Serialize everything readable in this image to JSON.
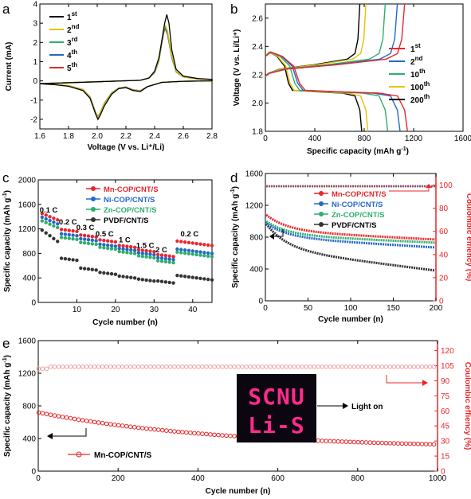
{
  "panels": {
    "a": {
      "letter": "a",
      "chart_data": {
        "type": "line",
        "xlabel": "Voltage (V vs. Li+/Li)",
        "ylabel": "Current (mA)",
        "xlim": [
          1.6,
          2.8
        ],
        "ylim": [
          -2.5,
          4
        ],
        "xticks": [
          "1.6",
          "1.8",
          "2.0",
          "2.2",
          "2.4",
          "2.6",
          "2.8"
        ],
        "yticks": [
          "-2",
          "-1",
          "0",
          "1",
          "2",
          "3",
          "4"
        ],
        "legend_position": "upper-left",
        "series": [
          {
            "name": "1st",
            "sup": "st",
            "base": "1",
            "color": "#000000",
            "anodic": [
              [
                2.3,
                0.03
              ],
              [
                2.36,
                0.15
              ],
              [
                2.4,
                0.5
              ],
              [
                2.43,
                1.2
              ],
              [
                2.455,
                2.3
              ],
              [
                2.47,
                3.0
              ],
              [
                2.485,
                3.45
              ],
              [
                2.5,
                3.0
              ],
              [
                2.52,
                1.6
              ],
              [
                2.55,
                0.6
              ],
              [
                2.6,
                0.25
              ],
              [
                2.7,
                0.12
              ],
              [
                2.8,
                0.08
              ]
            ],
            "cathodic": [
              [
                2.8,
                0.0
              ],
              [
                2.6,
                -0.02
              ],
              [
                2.45,
                -0.08
              ],
              [
                2.35,
                -0.3
              ],
              [
                2.3,
                -0.55
              ],
              [
                2.25,
                -0.5
              ],
              [
                2.2,
                -0.35
              ],
              [
                2.15,
                -0.4
              ],
              [
                2.1,
                -0.7
              ],
              [
                2.05,
                -1.3
              ],
              [
                2.02,
                -1.8
              ],
              [
                2.005,
                -2.0
              ],
              [
                1.99,
                -1.75
              ],
              [
                1.95,
                -0.9
              ],
              [
                1.9,
                -0.5
              ],
              [
                1.8,
                -0.28
              ],
              [
                1.7,
                -0.2
              ],
              [
                1.6,
                -0.15
              ]
            ]
          },
          {
            "name": "2nd",
            "sup": "nd",
            "base": "2",
            "color": "#e6c200",
            "anodic": [
              [
                2.3,
                0.03
              ],
              [
                2.36,
                0.15
              ],
              [
                2.4,
                0.45
              ],
              [
                2.43,
                1.1
              ],
              [
                2.45,
                2.1
              ],
              [
                2.465,
                2.75
              ],
              [
                2.475,
                2.9
              ],
              [
                2.49,
                2.6
              ],
              [
                2.52,
                1.3
              ],
              [
                2.55,
                0.5
              ],
              [
                2.6,
                0.2
              ],
              [
                2.7,
                0.1
              ],
              [
                2.8,
                0.06
              ]
            ],
            "cathodic": [
              [
                2.8,
                0.0
              ],
              [
                2.6,
                -0.02
              ],
              [
                2.45,
                -0.08
              ],
              [
                2.35,
                -0.3
              ],
              [
                2.3,
                -0.52
              ],
              [
                2.25,
                -0.48
              ],
              [
                2.2,
                -0.33
              ],
              [
                2.15,
                -0.38
              ],
              [
                2.1,
                -0.65
              ],
              [
                2.05,
                -1.2
              ],
              [
                2.02,
                -1.7
              ],
              [
                2.005,
                -1.92
              ],
              [
                1.99,
                -1.7
              ],
              [
                1.95,
                -0.85
              ],
              [
                1.9,
                -0.45
              ],
              [
                1.8,
                -0.25
              ],
              [
                1.7,
                -0.18
              ],
              [
                1.6,
                -0.14
              ]
            ]
          },
          {
            "name": "3rd",
            "sup": "rd",
            "base": "3",
            "color": "#2eae6b",
            "anodic": [
              [
                2.3,
                0.03
              ],
              [
                2.36,
                0.14
              ],
              [
                2.4,
                0.42
              ],
              [
                2.43,
                1.05
              ],
              [
                2.45,
                2.0
              ],
              [
                2.465,
                2.65
              ],
              [
                2.475,
                2.8
              ],
              [
                2.49,
                2.5
              ],
              [
                2.52,
                1.25
              ],
              [
                2.55,
                0.48
              ],
              [
                2.6,
                0.2
              ],
              [
                2.7,
                0.1
              ],
              [
                2.8,
                0.06
              ]
            ],
            "cathodic": [
              [
                2.8,
                0.0
              ],
              [
                2.6,
                -0.02
              ],
              [
                2.45,
                -0.08
              ],
              [
                2.35,
                -0.3
              ],
              [
                2.3,
                -0.52
              ],
              [
                2.25,
                -0.47
              ],
              [
                2.2,
                -0.32
              ],
              [
                2.15,
                -0.37
              ],
              [
                2.1,
                -0.63
              ],
              [
                2.05,
                -1.18
              ],
              [
                2.02,
                -1.68
              ],
              [
                2.005,
                -1.9
              ],
              [
                1.99,
                -1.68
              ],
              [
                1.95,
                -0.84
              ],
              [
                1.9,
                -0.45
              ],
              [
                1.8,
                -0.25
              ],
              [
                1.7,
                -0.18
              ],
              [
                1.6,
                -0.14
              ]
            ]
          },
          {
            "name": "4th",
            "sup": "th",
            "base": "4",
            "color": "#2468c9",
            "anodic": [
              [
                2.3,
                0.03
              ],
              [
                2.36,
                0.14
              ],
              [
                2.4,
                0.42
              ],
              [
                2.43,
                1.05
              ],
              [
                2.45,
                2.0
              ],
              [
                2.465,
                2.6
              ],
              [
                2.475,
                2.75
              ],
              [
                2.49,
                2.45
              ],
              [
                2.52,
                1.2
              ],
              [
                2.55,
                0.47
              ],
              [
                2.6,
                0.2
              ],
              [
                2.7,
                0.1
              ],
              [
                2.8,
                0.06
              ]
            ],
            "cathodic": [
              [
                2.8,
                0.0
              ],
              [
                2.6,
                -0.02
              ],
              [
                2.45,
                -0.08
              ],
              [
                2.35,
                -0.3
              ],
              [
                2.3,
                -0.51
              ],
              [
                2.25,
                -0.47
              ],
              [
                2.2,
                -0.32
              ],
              [
                2.15,
                -0.37
              ],
              [
                2.1,
                -0.62
              ],
              [
                2.05,
                -1.17
              ],
              [
                2.02,
                -1.67
              ],
              [
                2.005,
                -1.88
              ],
              [
                1.99,
                -1.67
              ],
              [
                1.95,
                -0.83
              ],
              [
                1.9,
                -0.45
              ],
              [
                1.8,
                -0.25
              ],
              [
                1.7,
                -0.18
              ],
              [
                1.6,
                -0.14
              ]
            ]
          },
          {
            "name": "5th",
            "sup": "th",
            "base": "5",
            "color": "#e8272a",
            "anodic": [
              [
                2.3,
                0.03
              ],
              [
                2.36,
                0.14
              ],
              [
                2.4,
                0.42
              ],
              [
                2.43,
                1.05
              ],
              [
                2.45,
                1.95
              ],
              [
                2.465,
                2.55
              ],
              [
                2.475,
                2.7
              ],
              [
                2.49,
                2.4
              ],
              [
                2.52,
                1.2
              ],
              [
                2.55,
                0.47
              ],
              [
                2.6,
                0.2
              ],
              [
                2.7,
                0.1
              ],
              [
                2.8,
                0.06
              ]
            ],
            "cathodic": [
              [
                2.8,
                0.0
              ],
              [
                2.6,
                -0.02
              ],
              [
                2.45,
                -0.08
              ],
              [
                2.35,
                -0.3
              ],
              [
                2.3,
                -0.51
              ],
              [
                2.25,
                -0.46
              ],
              [
                2.2,
                -0.32
              ],
              [
                2.15,
                -0.37
              ],
              [
                2.1,
                -0.62
              ],
              [
                2.05,
                -1.16
              ],
              [
                2.02,
                -1.66
              ],
              [
                2.005,
                -1.87
              ],
              [
                1.99,
                -1.66
              ],
              [
                1.95,
                -0.83
              ],
              [
                1.9,
                -0.44
              ],
              [
                1.8,
                -0.25
              ],
              [
                1.7,
                -0.18
              ],
              [
                1.6,
                -0.14
              ]
            ]
          }
        ]
      }
    },
    "b": {
      "letter": "b",
      "chart_data": {
        "type": "line",
        "xlabel": "Specific capacity (mAh g-1)",
        "ylabel": "Voltage (V vs. Li/Li+)",
        "xlim": [
          0,
          1600
        ],
        "ylim": [
          1.8,
          2.7
        ],
        "xticks": [
          "0",
          "400",
          "800",
          "1200",
          "1600"
        ],
        "yticks": [
          "1.8",
          "2.0",
          "2.2",
          "2.4",
          "2.6"
        ],
        "legend_position": "right",
        "series": [
          {
            "name": "1st",
            "sup": "st",
            "base": "1",
            "color": "#e8272a",
            "capacity": 1150
          },
          {
            "name": "2nd",
            "sup": "nd",
            "base": "2",
            "color": "#2468c9",
            "capacity": 1090
          },
          {
            "name": "10th",
            "sup": "th",
            "base": "10",
            "color": "#2eae6b",
            "capacity": 990
          },
          {
            "name": "100th",
            "sup": "th",
            "base": "100",
            "color": "#e6c200",
            "capacity": 830
          },
          {
            "name": "200th",
            "sup": "th",
            "base": "200",
            "color": "#000000",
            "capacity": 780
          }
        ]
      }
    },
    "c": {
      "letter": "c",
      "chart_data": {
        "type": "line",
        "xlabel": "Cycle number (n)",
        "ylabel": "Specific capacity (mAh g-1)",
        "xlim": [
          0,
          45
        ],
        "ylim": [
          0,
          2000
        ],
        "xticks": [
          "10",
          "20",
          "30",
          "40"
        ],
        "yticks": [
          "0",
          "400",
          "800",
          "1200",
          "1600",
          "2000"
        ],
        "legend_position": "top-right",
        "rate_labels": [
          "0.1 C",
          "0.2 C",
          "0.3 C",
          "0.5 C",
          "1 C",
          "1.5 C",
          "2 C",
          "0.2 C"
        ],
        "series": [
          {
            "name": "Mn-COP/CNT/S",
            "color": "#e8272a",
            "levels": [
              1450,
              1190,
              1100,
              1020,
              930,
              860,
              780,
              1000
            ]
          },
          {
            "name": "Ni-COP/CNT/S",
            "color": "#2468c9",
            "levels": [
              1390,
              1120,
              1040,
              950,
              880,
              810,
              730,
              870
            ]
          },
          {
            "name": "Zn-COP/CNT/S",
            "color": "#2eae6b",
            "levels": [
              1330,
              1060,
              980,
              900,
              830,
              760,
              680,
              820
            ]
          },
          {
            "name": "PVDF/CNT/S",
            "color": "#333333",
            "levels": [
              1180,
              720,
              560,
              490,
              430,
              380,
              350,
              440
            ]
          }
        ]
      }
    },
    "d": {
      "letter": "d",
      "chart_data": {
        "type": "line",
        "xlabel": "Cycle number (n)",
        "ylabel": "Specific capacity (mAh g-1)",
        "y2label": "Coulombic effiency (%)",
        "xlim": [
          0,
          200
        ],
        "ylim": [
          0,
          1600
        ],
        "y2lim": [
          0,
          110
        ],
        "xticks": [
          "0",
          "50",
          "100",
          "150",
          "200"
        ],
        "yticks": [
          "0",
          "400",
          "800",
          "1200",
          "1600"
        ],
        "y2ticks": [
          "0",
          "20",
          "40",
          "60",
          "80",
          "100"
        ],
        "legend_position": "middle-right",
        "series": [
          {
            "name": "Mn-COP/CNT/S",
            "color": "#e8272a",
            "start": 1150,
            "mid": 880,
            "end": 770
          },
          {
            "name": "Ni-COP/CNT/S",
            "color": "#2468c9",
            "start": 1000,
            "mid": 800,
            "end": 670
          },
          {
            "name": "Zn-COP/CNT/S",
            "color": "#2eae6b",
            "start": 1050,
            "mid": 830,
            "end": 730
          },
          {
            "name": "PVDF/CNT/S",
            "color": "#333333",
            "start": 980,
            "mid": 650,
            "end": 380
          }
        ],
        "coulombic_efficiency": 100
      }
    },
    "e": {
      "letter": "e",
      "chart_data": {
        "type": "scatter",
        "xlabel": "Cycle number (n)",
        "ylabel": "Specific capacity (mAh g-1)",
        "y2label": "Coulombic effiency (%)",
        "xlim": [
          0,
          1000
        ],
        "ylim": [
          0,
          1600
        ],
        "y2lim": [
          0,
          130
        ],
        "xticks": [
          "0",
          "200",
          "400",
          "600",
          "800",
          "1000"
        ],
        "yticks": [
          "0",
          "400",
          "800",
          "1200",
          "1600"
        ],
        "y2ticks": [
          "0",
          "15",
          "30",
          "45",
          "60",
          "75",
          "90",
          "105",
          "120"
        ],
        "legend_position": "bottom-left",
        "series": [
          {
            "name": "Mn-COP/CNT/S",
            "color": "#e8272a",
            "capacity_start": 720,
            "capacity_end": 280
          },
          {
            "name": "Coulombic efficiency",
            "color": "#f2a0a0",
            "value": 104
          }
        ],
        "inset": {
          "line1": "SCNU",
          "line2": "Li-S",
          "caption": "Light on"
        }
      }
    }
  }
}
